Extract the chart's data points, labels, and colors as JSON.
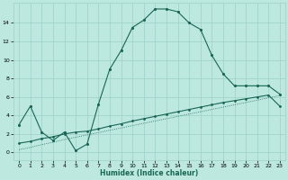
{
  "xlabel": "Humidex (Indice chaleur)",
  "background_color": "#bce8e0",
  "grid_color": "#9dd0c8",
  "line_color": "#1a6655",
  "xlim": [
    -0.5,
    23.5
  ],
  "ylim": [
    -0.8,
    16.2
  ],
  "xticks": [
    0,
    1,
    2,
    3,
    4,
    5,
    6,
    7,
    8,
    9,
    10,
    11,
    12,
    13,
    14,
    15,
    16,
    17,
    18,
    19,
    20,
    21,
    22,
    23
  ],
  "yticks": [
    0,
    2,
    4,
    6,
    8,
    10,
    12,
    14
  ],
  "curve1_x": [
    0,
    1,
    2,
    3,
    4,
    5,
    6,
    7,
    8,
    9,
    10,
    11,
    12,
    13,
    14,
    15,
    16,
    17,
    18,
    19,
    20,
    21,
    22,
    23
  ],
  "curve1_y": [
    3.0,
    5.0,
    2.2,
    1.3,
    2.2,
    0.2,
    0.9,
    5.2,
    9.0,
    11.0,
    13.5,
    14.3,
    15.5,
    15.5,
    15.2,
    14.0,
    13.3,
    10.5,
    8.5,
    7.2,
    7.2,
    7.2,
    7.2,
    6.3
  ],
  "curve2_x": [
    0,
    1,
    2,
    3,
    4,
    5,
    6,
    7,
    8,
    9,
    10,
    11,
    12,
    13,
    14,
    15,
    16,
    17,
    18,
    19,
    20,
    21,
    22,
    23
  ],
  "curve2_y": [
    1.0,
    1.2,
    1.5,
    1.7,
    2.0,
    2.2,
    2.3,
    2.55,
    2.85,
    3.1,
    3.4,
    3.65,
    3.9,
    4.15,
    4.4,
    4.65,
    4.9,
    5.15,
    5.4,
    5.6,
    5.8,
    6.0,
    6.2,
    5.0
  ],
  "curve3_x": [
    0,
    1,
    2,
    3,
    4,
    5,
    6,
    7,
    8,
    9,
    10,
    11,
    12,
    13,
    14,
    15,
    16,
    17,
    18,
    19,
    20,
    21,
    22,
    23
  ],
  "curve3_y": [
    0.3,
    0.55,
    0.85,
    1.1,
    1.4,
    1.65,
    1.9,
    2.15,
    2.4,
    2.65,
    2.9,
    3.15,
    3.4,
    3.65,
    3.9,
    4.15,
    4.4,
    4.65,
    4.9,
    5.15,
    5.4,
    5.65,
    5.9,
    6.15
  ]
}
